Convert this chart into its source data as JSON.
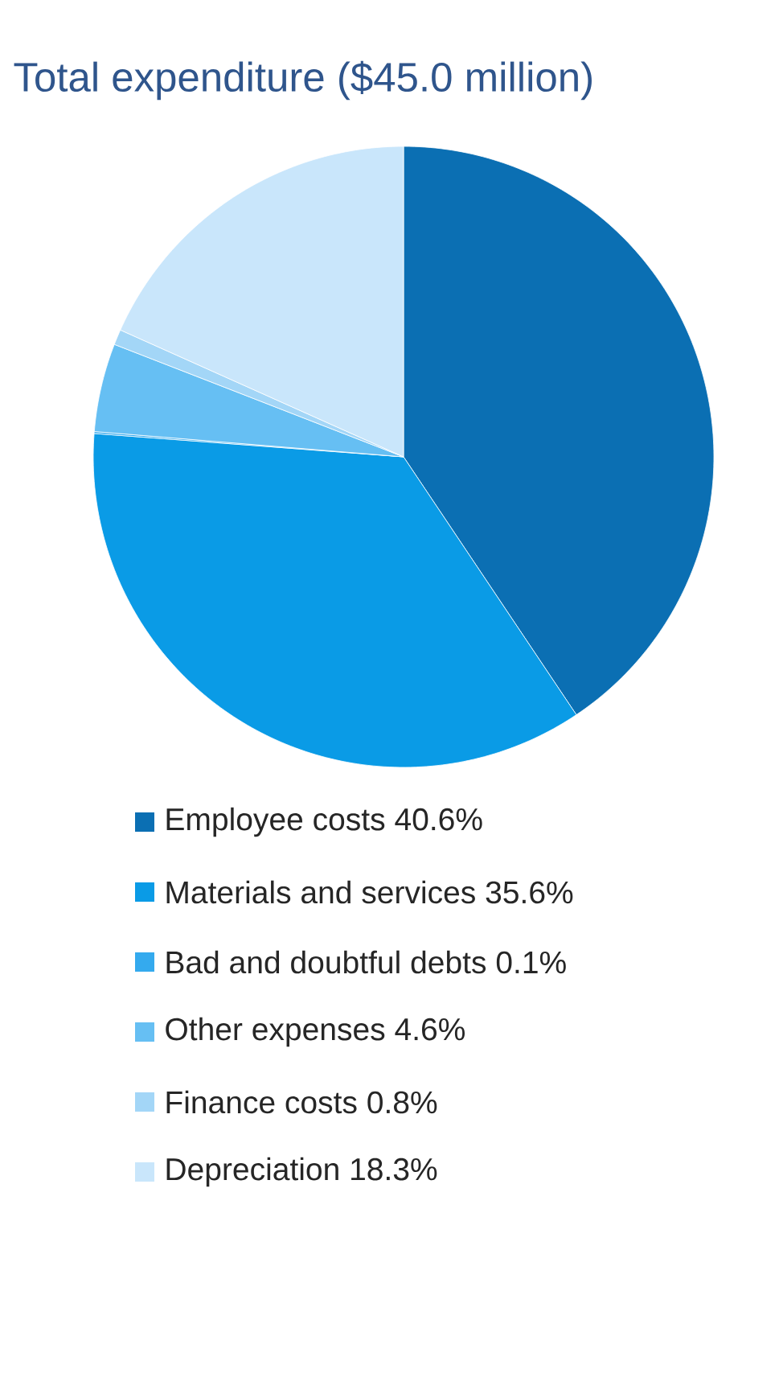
{
  "chart_data": {
    "type": "pie",
    "title": "Total expenditure ($45.0 million)",
    "categories": [
      "Employee costs 40.6%",
      "Materials and services 35.6%",
      "Bad and doubtful debts 0.1%",
      "Other expenses 4.6%",
      "Finance costs 0.8%",
      "Depreciation 18.3%"
    ],
    "values": [
      40.6,
      35.6,
      0.1,
      4.6,
      0.8,
      18.3
    ],
    "colors": [
      "#0b6fb3",
      "#0a9be6",
      "#34aaee",
      "#66bff3",
      "#a3d6f7",
      "#c9e6fb"
    ],
    "legend": "bottom"
  }
}
